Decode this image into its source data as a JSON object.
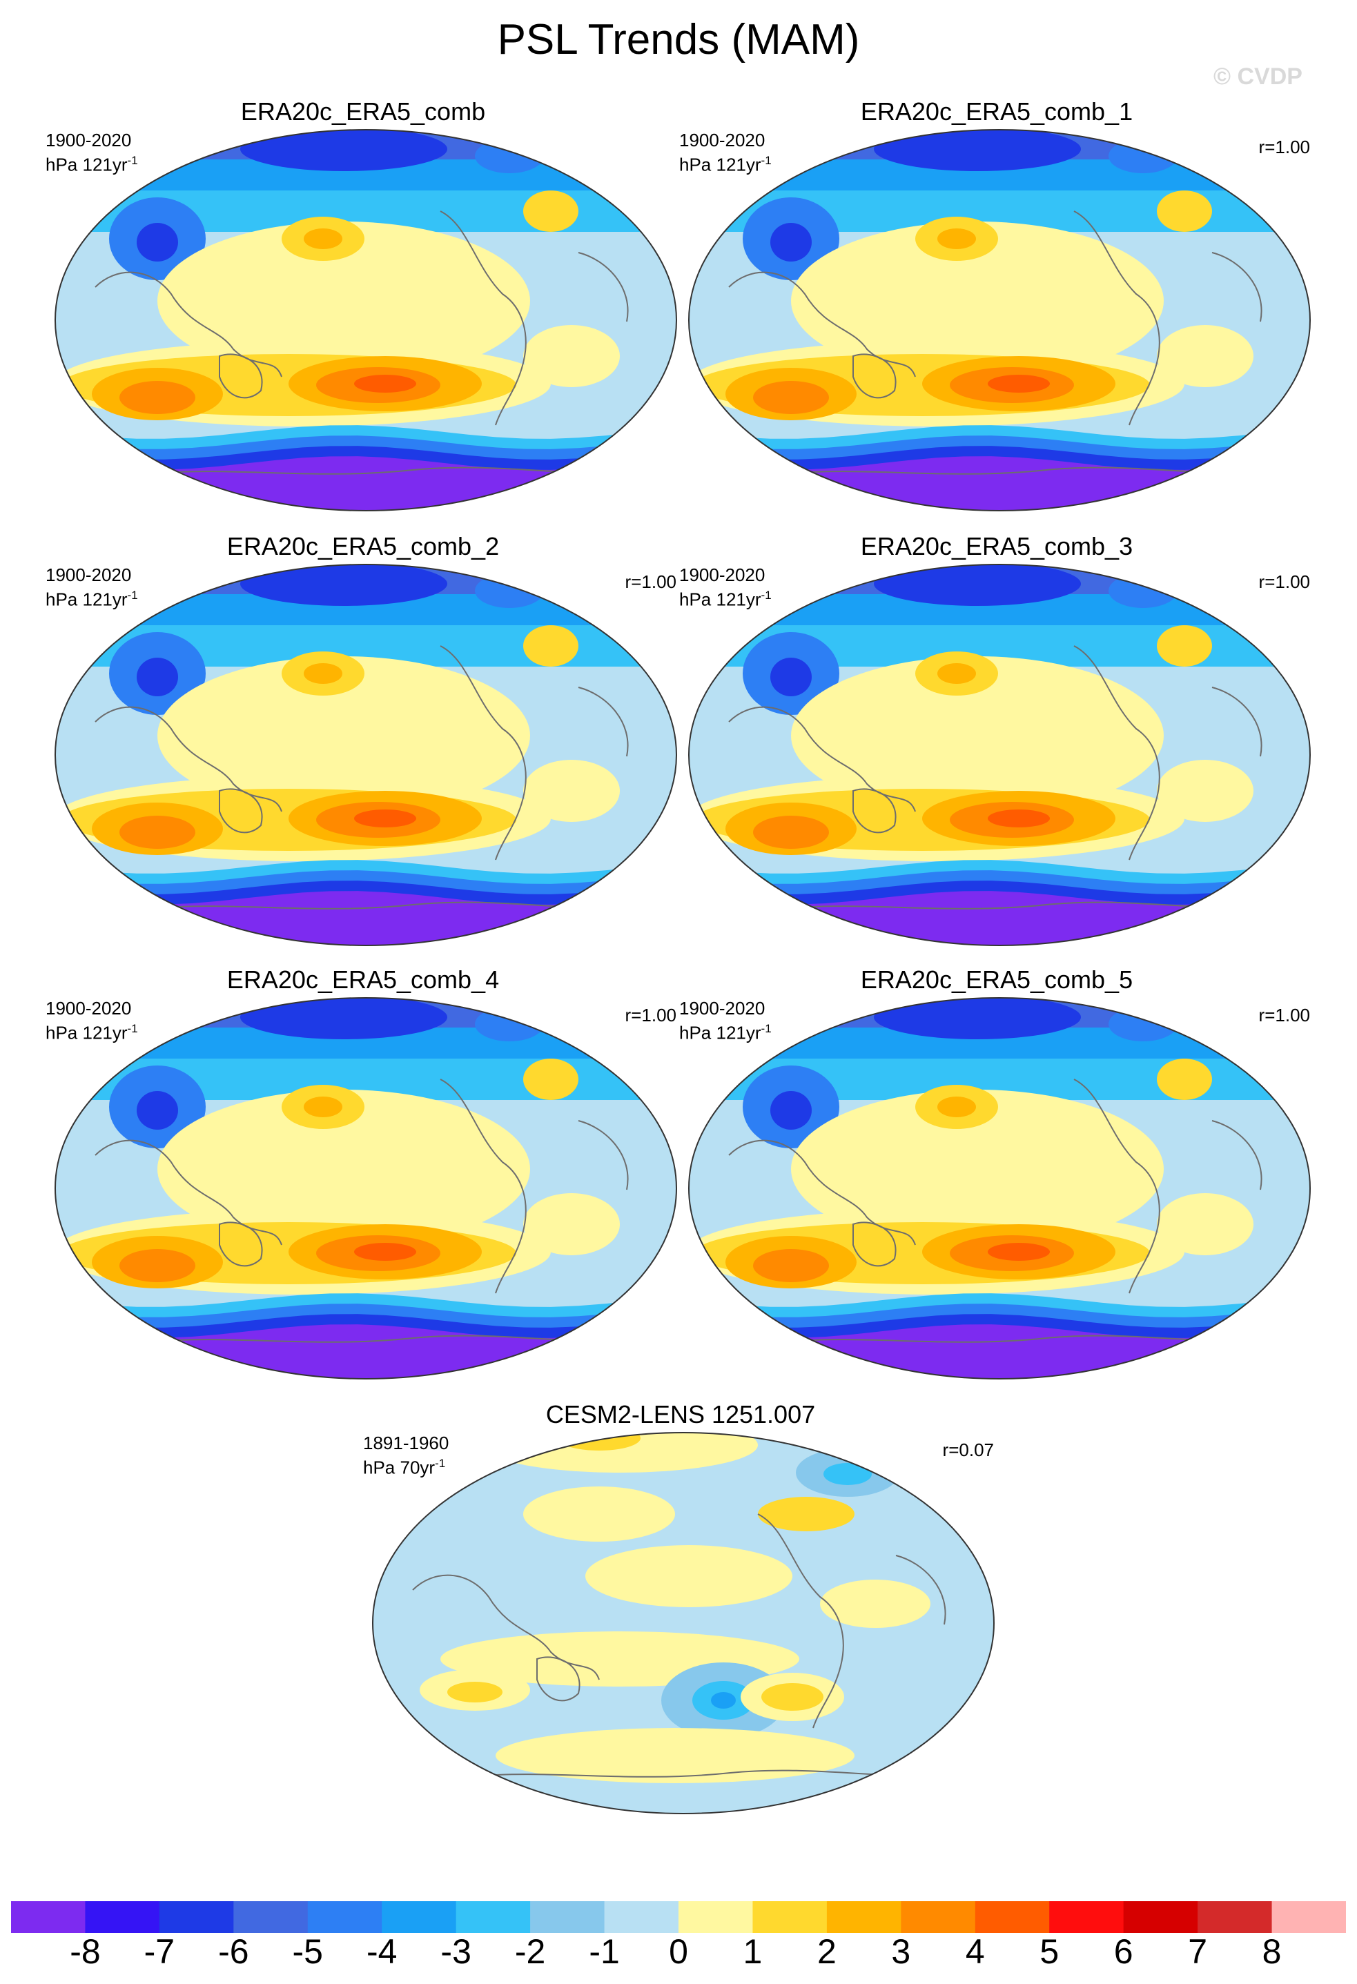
{
  "title": "PSL Trends (MAM)",
  "watermark": "© CVDP",
  "panels": [
    {
      "title": "ERA20c_ERA5_comb",
      "period": "1900-2020",
      "units_prefix": "hPa 121yr",
      "units_exp": "-1",
      "corr": "",
      "pattern": "reanalysis"
    },
    {
      "title": "ERA20c_ERA5_comb_1",
      "period": "1900-2020",
      "units_prefix": "hPa 121yr",
      "units_exp": "-1",
      "corr": "r=1.00",
      "pattern": "reanalysis"
    },
    {
      "title": "ERA20c_ERA5_comb_2",
      "period": "1900-2020",
      "units_prefix": "hPa 121yr",
      "units_exp": "-1",
      "corr": "r=1.00",
      "pattern": "reanalysis"
    },
    {
      "title": "ERA20c_ERA5_comb_3",
      "period": "1900-2020",
      "units_prefix": "hPa 121yr",
      "units_exp": "-1",
      "corr": "r=1.00",
      "pattern": "reanalysis"
    },
    {
      "title": "ERA20c_ERA5_comb_4",
      "period": "1900-2020",
      "units_prefix": "hPa 121yr",
      "units_exp": "-1",
      "corr": "r=1.00",
      "pattern": "reanalysis"
    },
    {
      "title": "ERA20c_ERA5_comb_5",
      "period": "1900-2020",
      "units_prefix": "hPa 121yr",
      "units_exp": "-1",
      "corr": "r=1.00",
      "pattern": "reanalysis"
    },
    {
      "title": "CESM2-LENS 1251.007",
      "period": "1891-1960",
      "units_prefix": "hPa 70yr",
      "units_exp": "-1",
      "corr": "r=0.07",
      "pattern": "model"
    }
  ],
  "colorbar": {
    "labels": [
      "-8",
      "-7",
      "-6",
      "-5",
      "-4",
      "-3",
      "-2",
      "-1",
      "0",
      "1",
      "2",
      "3",
      "4",
      "5",
      "6",
      "7",
      "8"
    ],
    "colors": [
      "#7d2bf0",
      "#3514f5",
      "#1e3ae6",
      "#4169e1",
      "#2d7ff4",
      "#1aa0f5",
      "#35c2f7",
      "#87c8ec",
      "#b8e0f3",
      "#fff8a0",
      "#ffd92e",
      "#ffb400",
      "#ff8a00",
      "#ff5c00",
      "#ff0d0d",
      "#d60000",
      "#d42a2a",
      "#ffb3b3"
    ]
  }
}
